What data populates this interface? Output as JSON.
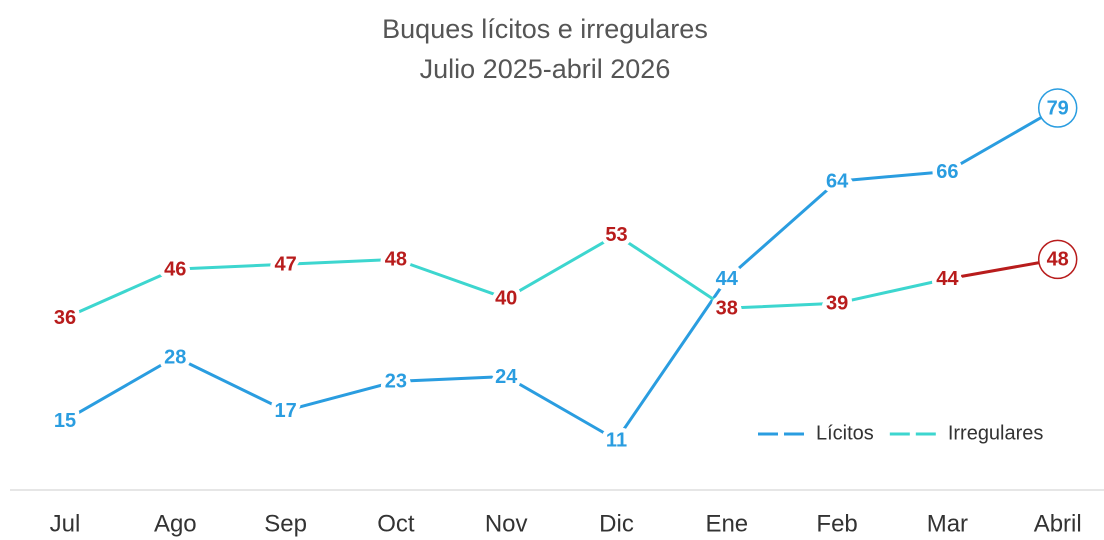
{
  "chart_data": {
    "type": "line",
    "title": "Buques lícitos e irregulares",
    "subtitle": "Julio 2025-abril 2026",
    "categories": [
      "Jul",
      "Ago",
      "Sep",
      "Oct",
      "Nov",
      "Dic",
      "Ene",
      "Feb",
      "Mar",
      "Abril"
    ],
    "series": [
      {
        "name": "Lícitos",
        "color": "#2a9de0",
        "label_color": "#2a9de0",
        "values": [
          15,
          28,
          17,
          23,
          24,
          11,
          44,
          64,
          66,
          79
        ]
      },
      {
        "name": "Irregulares",
        "color": "#3dd6cf",
        "label_color": "#b81c1c",
        "last_segment_color": "#b81c1c",
        "values": [
          36,
          46,
          47,
          48,
          40,
          53,
          38,
          39,
          44,
          48
        ]
      }
    ],
    "legend": "lower right"
  }
}
